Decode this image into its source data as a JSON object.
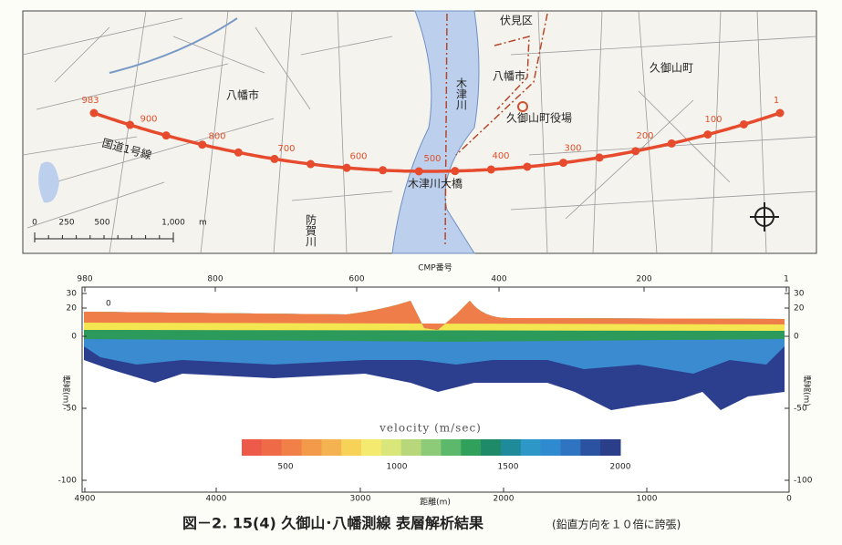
{
  "map": {
    "places": [
      "伏見区",
      "木津川",
      "八幡市",
      "八幡市",
      "久御山町",
      "久御山町役場",
      "国道1号線",
      "木津川大橋",
      "防賀川"
    ],
    "line_points": [
      "983",
      "900",
      "800",
      "700",
      "600",
      "500",
      "400",
      "300",
      "200",
      "100",
      "1"
    ],
    "scale_ticks": [
      "0",
      "250",
      "500",
      "1,000"
    ],
    "scale_unit": "m"
  },
  "section": {
    "top_axis_title": "CMP番号",
    "top_ticks": [
      "980",
      "800",
      "600",
      "400",
      "200",
      "1"
    ],
    "bottom_axis_title": "距離(m)",
    "bottom_ticks": [
      "4900",
      "4000",
      "3000",
      "2000",
      "1000",
      "0"
    ],
    "left_ticks": [
      "30",
      "20",
      "0",
      "-50",
      "-100"
    ],
    "right_ticks": [
      "30",
      "20",
      "0",
      "-50",
      "-100"
    ],
    "left_label": "標高(m)",
    "right_label": "標高(m)",
    "surface_label": "0",
    "legend_title": "velocity (m/sec)",
    "legend_ticks": [
      "500",
      "1000",
      "1500",
      "2000"
    ]
  },
  "caption": {
    "main": "図－2. 15(4) 久御山･八幡測線 表層解析結果",
    "note": "(鉛直方向を１０倍に誇張)"
  }
}
